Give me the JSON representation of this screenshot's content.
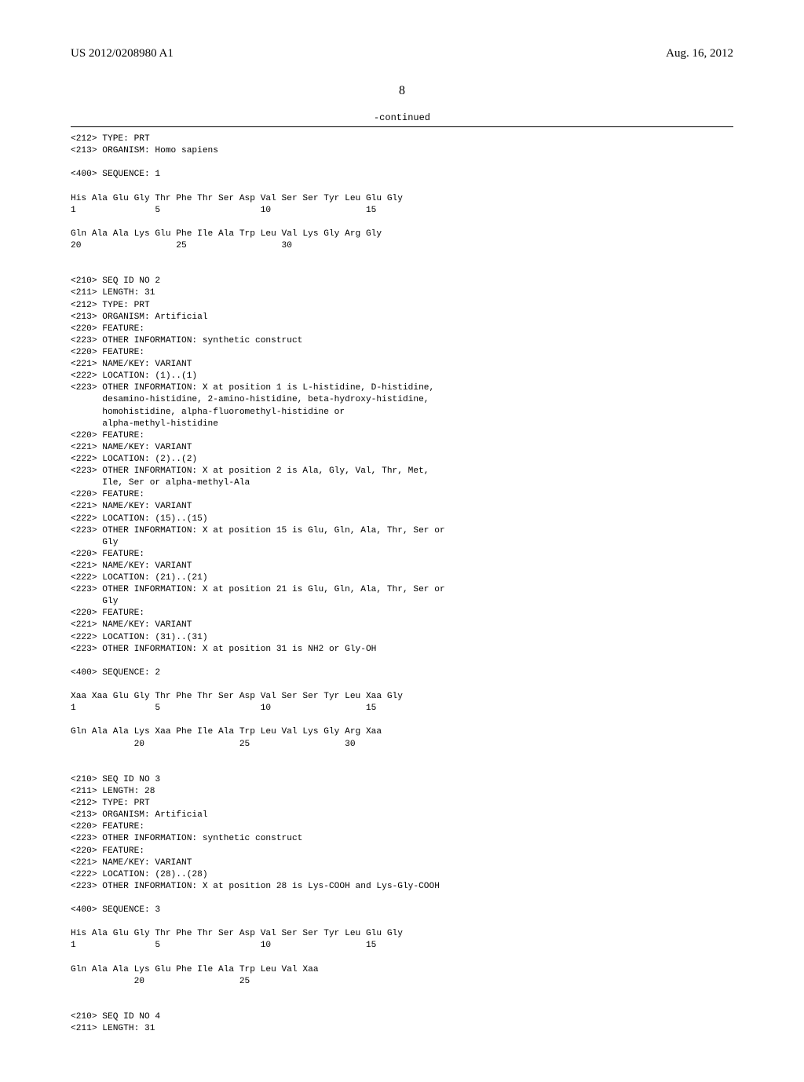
{
  "header": {
    "left": "US 2012/0208980 A1",
    "right": "Aug. 16, 2012"
  },
  "page_number": "8",
  "continued_label": "-continued",
  "listing_text": "<212> TYPE: PRT\n<213> ORGANISM: Homo sapiens\n\n<400> SEQUENCE: 1\n\nHis Ala Glu Gly Thr Phe Thr Ser Asp Val Ser Ser Tyr Leu Glu Gly\n1               5                   10                  15\n\nGln Ala Ala Lys Glu Phe Ile Ala Trp Leu Val Lys Gly Arg Gly\n20                  25                  30\n\n\n<210> SEQ ID NO 2\n<211> LENGTH: 31\n<212> TYPE: PRT\n<213> ORGANISM: Artificial\n<220> FEATURE:\n<223> OTHER INFORMATION: synthetic construct\n<220> FEATURE:\n<221> NAME/KEY: VARIANT\n<222> LOCATION: (1)..(1)\n<223> OTHER INFORMATION: X at position 1 is L-histidine, D-histidine,\n      desamino-histidine, 2-amino-histidine, beta-hydroxy-histidine,\n      homohistidine, alpha-fluoromethyl-histidine or\n      alpha-methyl-histidine\n<220> FEATURE:\n<221> NAME/KEY: VARIANT\n<222> LOCATION: (2)..(2)\n<223> OTHER INFORMATION: X at position 2 is Ala, Gly, Val, Thr, Met,\n      Ile, Ser or alpha-methyl-Ala\n<220> FEATURE:\n<221> NAME/KEY: VARIANT\n<222> LOCATION: (15)..(15)\n<223> OTHER INFORMATION: X at position 15 is Glu, Gln, Ala, Thr, Ser or\n      Gly\n<220> FEATURE:\n<221> NAME/KEY: VARIANT\n<222> LOCATION: (21)..(21)\n<223> OTHER INFORMATION: X at position 21 is Glu, Gln, Ala, Thr, Ser or\n      Gly\n<220> FEATURE:\n<221> NAME/KEY: VARIANT\n<222> LOCATION: (31)..(31)\n<223> OTHER INFORMATION: X at position 31 is NH2 or Gly-OH\n\n<400> SEQUENCE: 2\n\nXaa Xaa Glu Gly Thr Phe Thr Ser Asp Val Ser Ser Tyr Leu Xaa Gly\n1               5                   10                  15\n\nGln Ala Ala Lys Xaa Phe Ile Ala Trp Leu Val Lys Gly Arg Xaa\n            20                  25                  30\n\n\n<210> SEQ ID NO 3\n<211> LENGTH: 28\n<212> TYPE: PRT\n<213> ORGANISM: Artificial\n<220> FEATURE:\n<223> OTHER INFORMATION: synthetic construct\n<220> FEATURE:\n<221> NAME/KEY: VARIANT\n<222> LOCATION: (28)..(28)\n<223> OTHER INFORMATION: X at position 28 is Lys-COOH and Lys-Gly-COOH\n\n<400> SEQUENCE: 3\n\nHis Ala Glu Gly Thr Phe Thr Ser Asp Val Ser Ser Tyr Leu Glu Gly\n1               5                   10                  15\n\nGln Ala Ala Lys Glu Phe Ile Ala Trp Leu Val Xaa\n            20                  25\n\n\n<210> SEQ ID NO 4\n<211> LENGTH: 31"
}
